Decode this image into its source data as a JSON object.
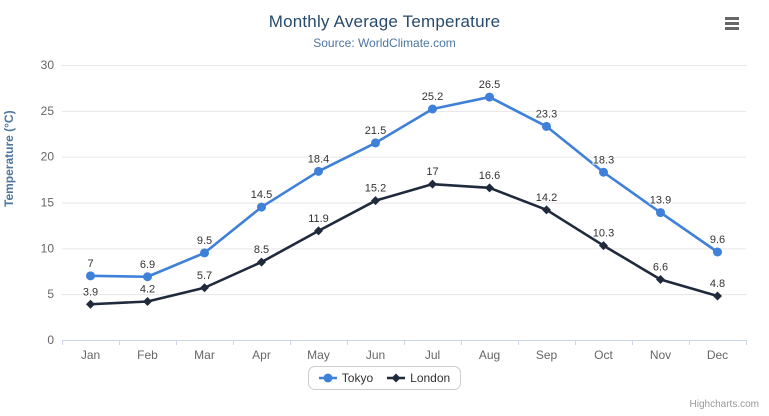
{
  "chart_data": {
    "type": "line",
    "title": "Monthly Average Temperature",
    "subtitle": "Source: WorldClimate.com",
    "categories": [
      "Jan",
      "Feb",
      "Mar",
      "Apr",
      "May",
      "Jun",
      "Jul",
      "Aug",
      "Sep",
      "Oct",
      "Nov",
      "Dec"
    ],
    "series": [
      {
        "name": "Tokyo",
        "color": "#3f80d8",
        "marker": "circle",
        "values": [
          7,
          6.9,
          9.5,
          14.5,
          18.4,
          21.5,
          25.2,
          26.5,
          23.3,
          18.3,
          13.9,
          9.6
        ]
      },
      {
        "name": "London",
        "color": "#1f2b3d",
        "marker": "diamond",
        "values": [
          3.9,
          4.2,
          5.7,
          8.5,
          11.9,
          15.2,
          17,
          16.6,
          14.2,
          10.3,
          6.6,
          4.8
        ]
      }
    ],
    "xlabel": "",
    "ylabel": "Temperature (°C)",
    "ylim": [
      0,
      30
    ],
    "ytick_interval": 5,
    "grid": true,
    "data_labels": true,
    "legend_position": "bottom"
  },
  "colors": {
    "title": "#274b6d",
    "subtitle": "#4d759e",
    "axis_title": "#4d759e",
    "axis_label": "#666666",
    "gridline": "#e6e6e6",
    "axis_line": "#ccd6eb",
    "data_label": "#333333",
    "legend_text": "#333333",
    "credit": "#999999"
  },
  "credit": {
    "label": "Highcharts.com"
  },
  "icons": {
    "menu": "hamburger-menu-icon"
  }
}
